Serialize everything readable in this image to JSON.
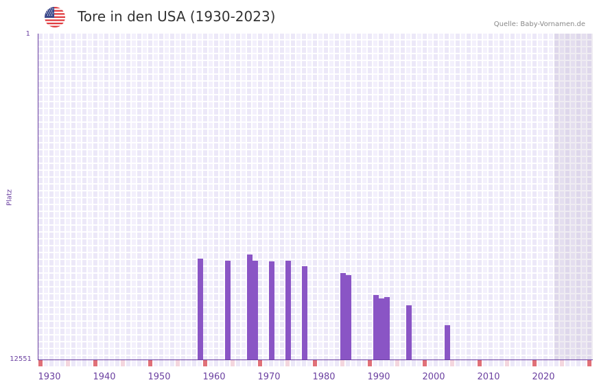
{
  "header": {
    "title": "Tore in den USA (1930-2023)",
    "source": "Quelle: Baby-Vornamen.de",
    "flag_icon": "us-flag-icon"
  },
  "colors": {
    "bar": "#8a55c5",
    "axis": "#6a3fa0",
    "marker_strong": "#e07078",
    "marker_pale": "#f4d6de",
    "cell_a": "#f3f0fc",
    "cell_b": "#ece8f8"
  },
  "chart_data": {
    "type": "bar",
    "title": "Tore in den USA (1930-2023)",
    "xlabel": "",
    "ylabel": "Platz",
    "y_inverted": true,
    "ylim": [
      1,
      12551
    ],
    "xlim": [
      1928,
      2028
    ],
    "y_tick_labels": [
      "1",
      "12551"
    ],
    "x_tick_labels": [
      "1930",
      "1940",
      "1950",
      "1960",
      "1970",
      "1980",
      "1990",
      "2000",
      "2010",
      "2020"
    ],
    "grid": true,
    "shaded_future_from": 2022,
    "categories": [
      1957,
      1962,
      1966,
      1967,
      1970,
      1973,
      1976,
      1983,
      1984,
      1989,
      1990,
      1991,
      1995,
      2002
    ],
    "values": [
      8667,
      8745,
      8508,
      8745,
      8772,
      8745,
      8957,
      9221,
      9300,
      10066,
      10198,
      10146,
      10463,
      11229
    ]
  },
  "axis": {
    "y_top": "1",
    "y_bottom": "12551",
    "y_title": "Platz"
  }
}
